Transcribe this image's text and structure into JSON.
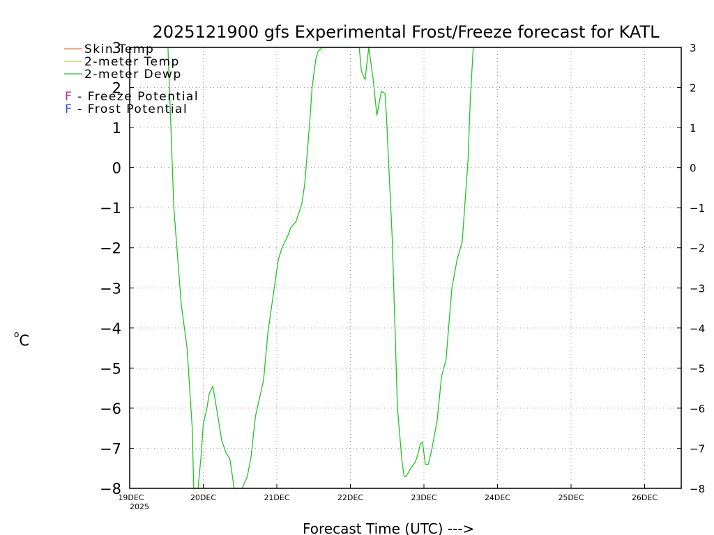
{
  "chart_data": {
    "type": "line",
    "title": "2025121900 gfs Experimental Frost/Freeze forecast for KATL",
    "ylabel": "°C",
    "ylabel_prefix": "o",
    "ylabel_unit": "C",
    "xlabel": "Forecast Time (UTC) --->",
    "ylim": [
      -8,
      3
    ],
    "yticks": [
      3,
      2,
      1,
      0,
      -1,
      -2,
      -3,
      -4,
      -5,
      -6,
      -7,
      -8
    ],
    "xlim_days": [
      0,
      7.5
    ],
    "xticks": [
      {
        "day": 0,
        "label": "19DEC",
        "sublabel": "2025"
      },
      {
        "day": 1,
        "label": "20DEC"
      },
      {
        "day": 2,
        "label": "21DEC"
      },
      {
        "day": 3,
        "label": "22DEC"
      },
      {
        "day": 4,
        "label": "23DEC"
      },
      {
        "day": 5,
        "label": "24DEC"
      },
      {
        "day": 6,
        "label": "25DEC"
      },
      {
        "day": 7,
        "label": "26DEC"
      }
    ],
    "legend": [
      {
        "name": "Skin Temp",
        "color": "#e8793a"
      },
      {
        "name": "2-meter Temp",
        "color": "#d8c23a"
      },
      {
        "name": "2-meter Dewp",
        "color": "#22c322"
      }
    ],
    "potential_legend": [
      {
        "marker": "F",
        "text": " - Freeze Potential",
        "color": "#c020a0"
      },
      {
        "marker": "F",
        "text": " - Frost Potential",
        "color": "#3050e0"
      }
    ],
    "series": [
      {
        "name": "Skin Temp",
        "color": "#e8793a",
        "x": [],
        "y": []
      },
      {
        "name": "2-meter Temp",
        "color": "#d8c23a",
        "x": [],
        "y": []
      },
      {
        "name": "2-meter Dewp",
        "color": "#22c322",
        "x": [
          0.52,
          0.6,
          0.7,
          0.78,
          0.85,
          0.87,
          0.9,
          0.93,
          0.97,
          1.0,
          1.05,
          1.08,
          1.13,
          1.19,
          1.25,
          1.31,
          1.36,
          1.42,
          1.46,
          1.53,
          1.6,
          1.65,
          1.71,
          1.82,
          1.88,
          1.95,
          2.02,
          2.07,
          2.15,
          2.19,
          2.26,
          2.34,
          2.38,
          2.45,
          2.48,
          2.53,
          2.56,
          2.62,
          2.66,
          2.7,
          2.75,
          2.85,
          3.12,
          3.15,
          3.2,
          3.25,
          3.31,
          3.36,
          3.42,
          3.47,
          3.49,
          3.57,
          3.64,
          3.7,
          3.73,
          3.76,
          3.82,
          3.88,
          3.91,
          3.95,
          3.98,
          4.02,
          4.06,
          4.11,
          4.18,
          4.24,
          4.3,
          4.38,
          4.45,
          4.52,
          4.6,
          4.63,
          4.67
        ],
        "y": [
          3.0,
          -1.0,
          -3.4,
          -4.5,
          -6.5,
          -8.0,
          -8.0,
          -8.0,
          -7.2,
          -6.4,
          -6.0,
          -5.65,
          -5.45,
          -6.1,
          -6.8,
          -7.12,
          -7.25,
          -8.0,
          -8.0,
          -8.0,
          -7.7,
          -7.2,
          -6.2,
          -5.3,
          -4.1,
          -3.2,
          -2.3,
          -2.0,
          -1.7,
          -1.5,
          -1.35,
          -0.9,
          -0.4,
          1.2,
          2.0,
          2.7,
          2.9,
          3.0,
          3.0,
          3.0,
          3.0,
          3.0,
          3.0,
          2.4,
          2.2,
          3.0,
          2.2,
          1.3,
          1.9,
          1.85,
          1.3,
          -1.8,
          -6.0,
          -7.3,
          -7.7,
          -7.7,
          -7.5,
          -7.35,
          -7.2,
          -6.9,
          -6.85,
          -7.4,
          -7.4,
          -7.0,
          -6.3,
          -5.2,
          -4.8,
          -3.0,
          -2.3,
          -1.85,
          0.2,
          1.7,
          3.0
        ]
      }
    ]
  }
}
